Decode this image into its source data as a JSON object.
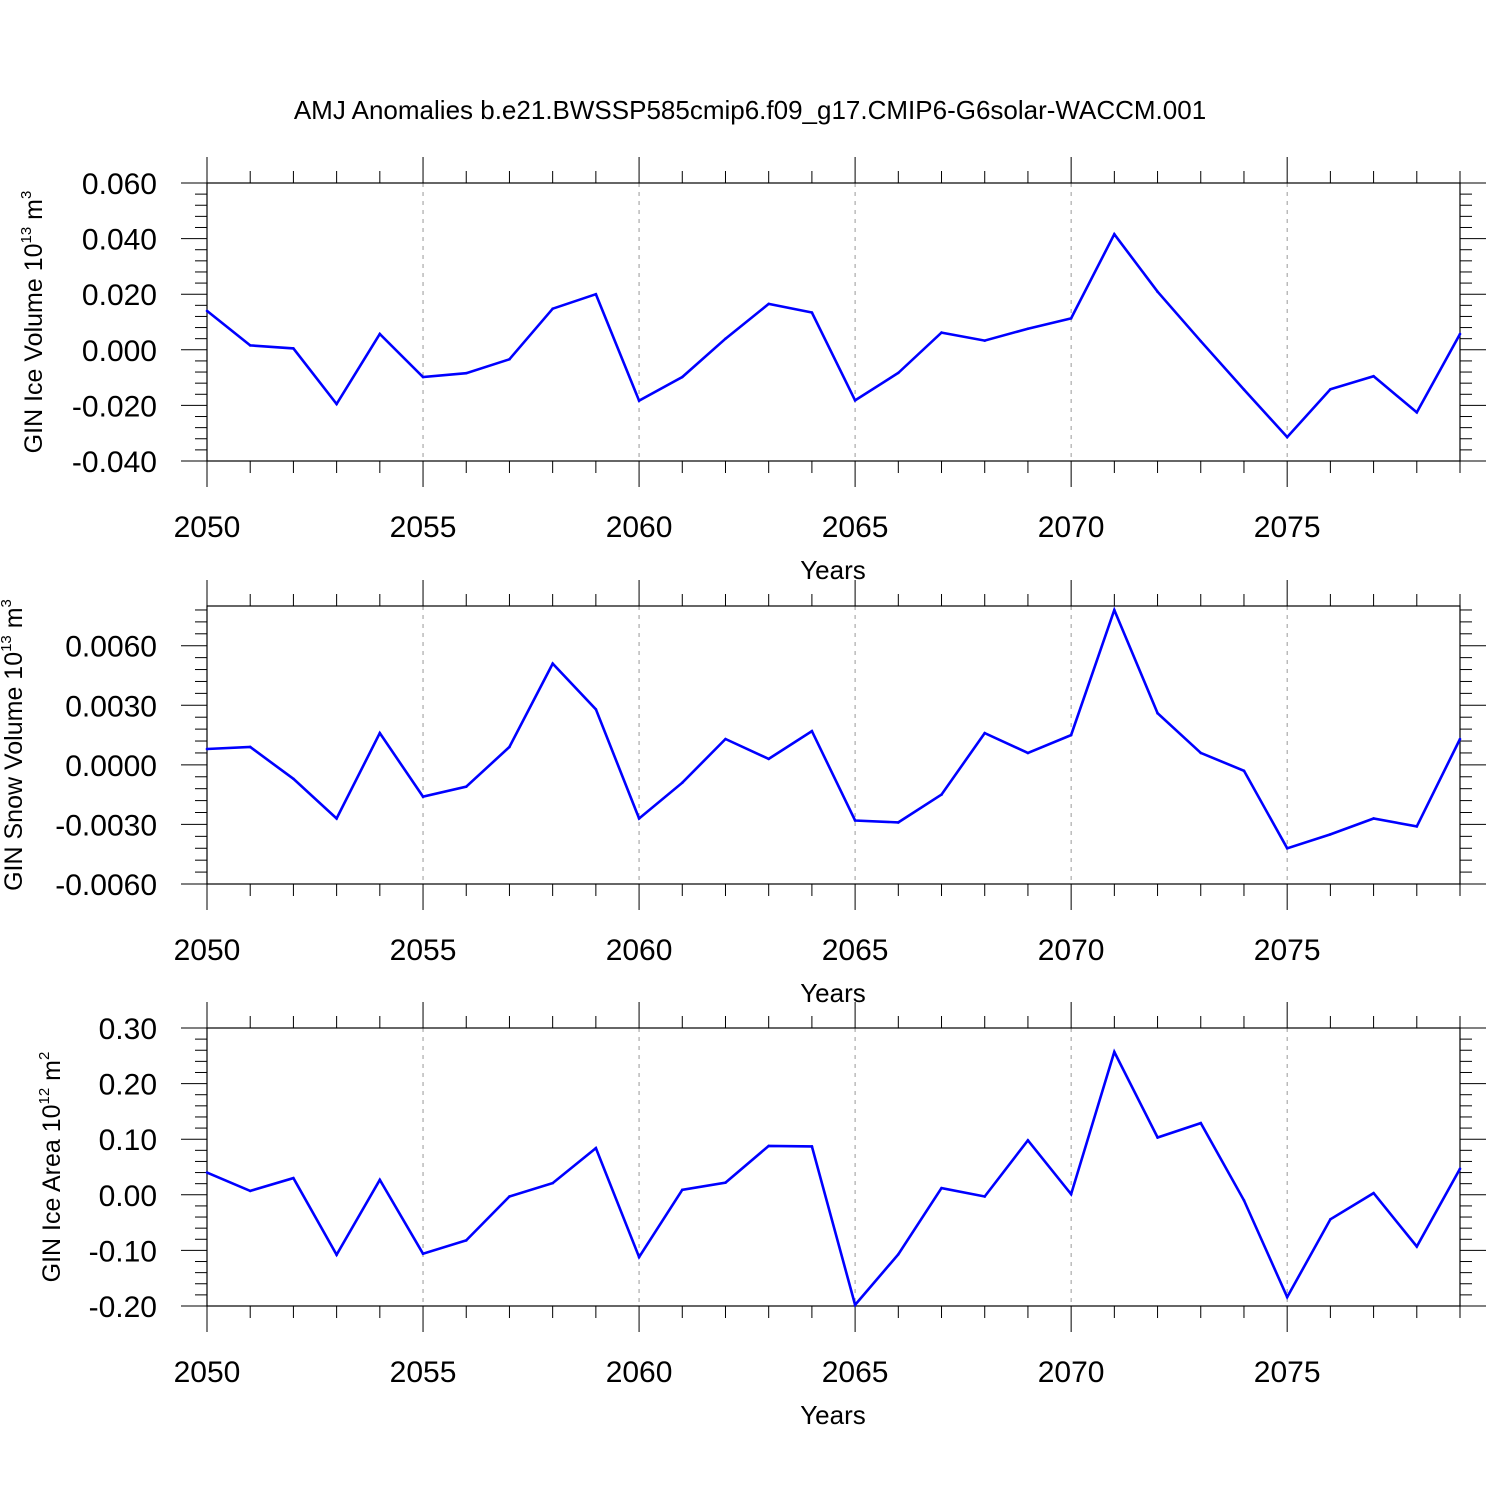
{
  "title": "AMJ Anomalies b.e21.BWSSP585cmip6.f09_g17.CMIP6-G6solar-WACCM.001",
  "colors": {
    "series": "#0000ff",
    "axes": "#000000",
    "grid": "#999999"
  },
  "chart_data": [
    {
      "type": "line",
      "ylabel": {
        "main": "GIN Ice Volume 10",
        "exp": "13",
        "unit": " m",
        "unit_exp": "3"
      },
      "xlabel": "Years",
      "xlim": [
        2050,
        2079
      ],
      "ylim": [
        -0.04,
        0.06
      ],
      "yticks": [
        -0.04,
        -0.02,
        0.0,
        0.02,
        0.04,
        0.06
      ],
      "ytick_labels": [
        "-0.040",
        "-0.020",
        "0.000",
        "0.020",
        "0.040",
        "0.060"
      ],
      "xticks": [
        2050,
        2055,
        2060,
        2065,
        2070,
        2075
      ],
      "xtick_labels": [
        "2050",
        "2055",
        "2060",
        "2065",
        "2070",
        "2075"
      ],
      "grid": "vertical dashed at major x ticks",
      "x": [
        2050,
        2051,
        2052,
        2053,
        2054,
        2055,
        2056,
        2057,
        2058,
        2059,
        2060,
        2061,
        2062,
        2063,
        2064,
        2065,
        2066,
        2067,
        2068,
        2069,
        2070,
        2071,
        2072,
        2073,
        2074,
        2075,
        2076,
        2077,
        2078,
        2079
      ],
      "y": [
        0.014,
        0.0016,
        0.0005,
        -0.0195,
        0.0057,
        -0.0098,
        -0.0084,
        -0.0034,
        0.0148,
        0.02,
        -0.0183,
        -0.0098,
        0.004,
        0.0165,
        0.0134,
        -0.0182,
        -0.0083,
        0.0062,
        0.0033,
        0.0076,
        0.0113,
        0.0416,
        0.0209,
        0.0031,
        -0.0143,
        -0.0314,
        -0.0142,
        -0.0095,
        -0.0225,
        0.0057
      ]
    },
    {
      "type": "line",
      "ylabel": {
        "main": "GIN Snow Volume 10",
        "exp": "13",
        "unit": " m",
        "unit_exp": "3"
      },
      "xlabel": "Years",
      "xlim": [
        2050,
        2079
      ],
      "ylim": [
        -0.006,
        0.008
      ],
      "yticks": [
        -0.006,
        -0.003,
        0.0,
        0.003,
        0.006
      ],
      "ytick_labels": [
        "-0.0060",
        "-0.0030",
        "0.0000",
        "0.0030",
        "0.0060"
      ],
      "xticks": [
        2050,
        2055,
        2060,
        2065,
        2070,
        2075
      ],
      "xtick_labels": [
        "2050",
        "2055",
        "2060",
        "2065",
        "2070",
        "2075"
      ],
      "grid": "vertical dashed at major x ticks",
      "x": [
        2050,
        2051,
        2052,
        2053,
        2054,
        2055,
        2056,
        2057,
        2058,
        2059,
        2060,
        2061,
        2062,
        2063,
        2064,
        2065,
        2066,
        2067,
        2068,
        2069,
        2070,
        2071,
        2072,
        2073,
        2074,
        2075,
        2076,
        2077,
        2078,
        2079
      ],
      "y": [
        0.0008,
        0.0009,
        -0.0007,
        -0.0027,
        0.0016,
        -0.0016,
        -0.0011,
        0.0009,
        0.0051,
        0.0028,
        -0.0027,
        -0.0009,
        0.0013,
        0.0003,
        0.0017,
        -0.0028,
        -0.0029,
        -0.0015,
        0.0016,
        0.0006,
        0.0015,
        0.0078,
        0.0026,
        0.0006,
        -0.0003,
        -0.0042,
        -0.0035,
        -0.0027,
        -0.0031,
        0.0013
      ]
    },
    {
      "type": "line",
      "ylabel": {
        "main": "GIN Ice Area 10",
        "exp": "12",
        "unit": " m",
        "unit_exp": "2"
      },
      "xlabel": "Years",
      "xlim": [
        2050,
        2079
      ],
      "ylim": [
        -0.2,
        0.3
      ],
      "yticks": [
        -0.2,
        -0.1,
        0.0,
        0.1,
        0.2,
        0.3
      ],
      "ytick_labels": [
        "-0.20",
        "-0.10",
        "0.00",
        "0.10",
        "0.20",
        "0.30"
      ],
      "xticks": [
        2050,
        2055,
        2060,
        2065,
        2070,
        2075
      ],
      "xtick_labels": [
        "2050",
        "2055",
        "2060",
        "2065",
        "2070",
        "2075"
      ],
      "grid": "vertical dashed at major x ticks",
      "x": [
        2050,
        2051,
        2052,
        2053,
        2054,
        2055,
        2056,
        2057,
        2058,
        2059,
        2060,
        2061,
        2062,
        2063,
        2064,
        2065,
        2066,
        2067,
        2068,
        2069,
        2070,
        2071,
        2072,
        2073,
        2074,
        2075,
        2076,
        2077,
        2078,
        2079
      ],
      "y": [
        0.04,
        0.007,
        0.03,
        -0.108,
        0.027,
        -0.106,
        -0.082,
        -0.003,
        0.021,
        0.084,
        -0.112,
        0.009,
        0.022,
        0.088,
        0.087,
        -0.198,
        -0.107,
        0.012,
        -0.003,
        0.098,
        0.001,
        0.257,
        0.103,
        0.129,
        -0.01,
        -0.184,
        -0.044,
        0.003,
        -0.093,
        0.047
      ]
    }
  ]
}
